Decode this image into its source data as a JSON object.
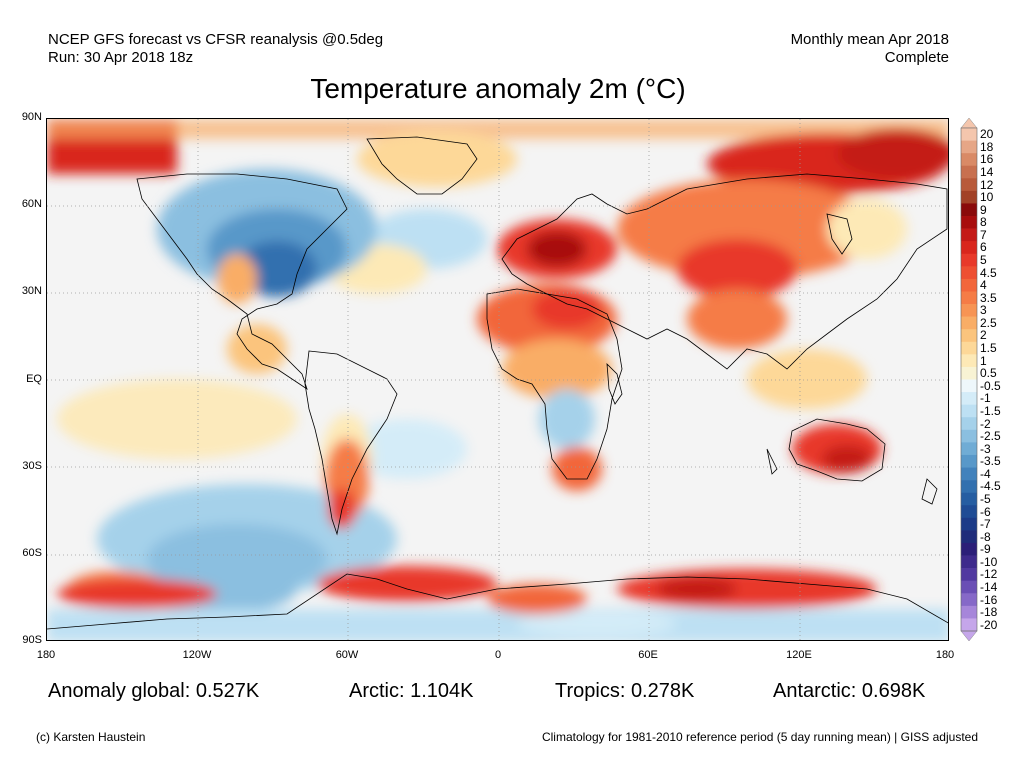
{
  "header": {
    "model_line": "NCEP GFS forecast vs CFSR reanalysis @0.5deg",
    "run_line": "Run: 30 Apr 2018 18z",
    "period_line": "Monthly mean Apr 2018",
    "status_line": "Complete"
  },
  "title": "Temperature anomaly 2m (°C)",
  "map": {
    "lat_labels": [
      "90N",
      "60N",
      "30N",
      "EQ",
      "30S",
      "60S",
      "90S"
    ],
    "lon_labels": [
      "180",
      "120W",
      "60W",
      "0",
      "60E",
      "120E",
      "180"
    ]
  },
  "colorbar": {
    "levels": [
      "20",
      "18",
      "16",
      "14",
      "12",
      "10",
      "9",
      "8",
      "7",
      "6",
      "5",
      "4.5",
      "4",
      "3.5",
      "3",
      "2.5",
      "2",
      "1.5",
      "1",
      "0.5",
      "-0.5",
      "-1",
      "-1.5",
      "-2",
      "-2.5",
      "-3",
      "-3.5",
      "-4",
      "-4.5",
      "-5",
      "-6",
      "-7",
      "-8",
      "-9",
      "-10",
      "-12",
      "-14",
      "-16",
      "-18",
      "-20"
    ],
    "colors": [
      "#f4c6ad",
      "#e6a686",
      "#d98a66",
      "#c8704f",
      "#b85a3a",
      "#a24126",
      "#8a0a0a",
      "#a80d0d",
      "#c41a17",
      "#d9261d",
      "#e8392a",
      "#ee4f32",
      "#f2663b",
      "#f57c46",
      "#f79454",
      "#f9ad66",
      "#fbc47d",
      "#fdd898",
      "#fde9b6",
      "#f8f3d4",
      "#eef7fb",
      "#d4ecf8",
      "#bde0f3",
      "#a5d1ea",
      "#8bbfe0",
      "#70acd5",
      "#5898c9",
      "#4282bc",
      "#3270af",
      "#265ea2",
      "#1f4c95",
      "#1c3b88",
      "#1f2c7a",
      "#2b1e78",
      "#3e2a8c",
      "#5139a0",
      "#6a4fb5",
      "#8669c8",
      "#a686da",
      "#c5a6ea"
    ]
  },
  "stats": {
    "global": "Anomaly global: 0.527K",
    "arctic": "Arctic: 1.104K",
    "tropics": "Tropics: 0.278K",
    "antarctic": "Antarctic: 0.698K"
  },
  "footer": {
    "credit": "(c) Karsten Haustein",
    "climatology": "Climatology for 1981-2010 reference period (5 day running mean) | GISS adjusted"
  }
}
